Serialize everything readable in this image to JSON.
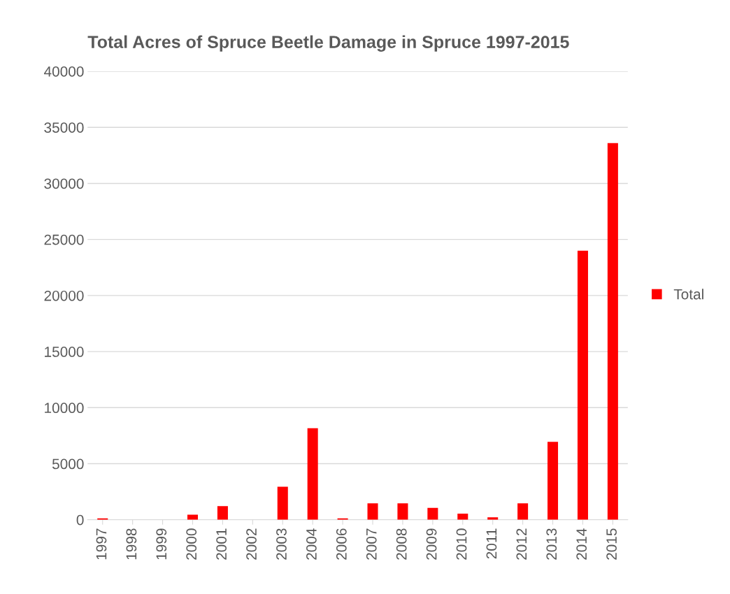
{
  "chart_data": {
    "type": "bar",
    "title": "Total Acres of Spruce Beetle Damage in Spruce 1997-2015",
    "categories": [
      "1997",
      "1998",
      "1999",
      "2000",
      "2001",
      "2002",
      "2003",
      "2004",
      "2006",
      "2007",
      "2008",
      "2009",
      "2010",
      "2011",
      "2012",
      "2013",
      "2014",
      "2015"
    ],
    "series": [
      {
        "name": "Total",
        "color": "#ff0000",
        "values": [
          130,
          0,
          0,
          450,
          1220,
          0,
          2950,
          8170,
          130,
          1470,
          1470,
          1060,
          540,
          220,
          1470,
          6950,
          24000,
          33600
        ]
      }
    ],
    "ylim": [
      0,
      40000
    ],
    "yticks": [
      0,
      5000,
      10000,
      15000,
      20000,
      25000,
      30000,
      35000,
      40000
    ],
    "grid": "y",
    "legend": "right"
  }
}
